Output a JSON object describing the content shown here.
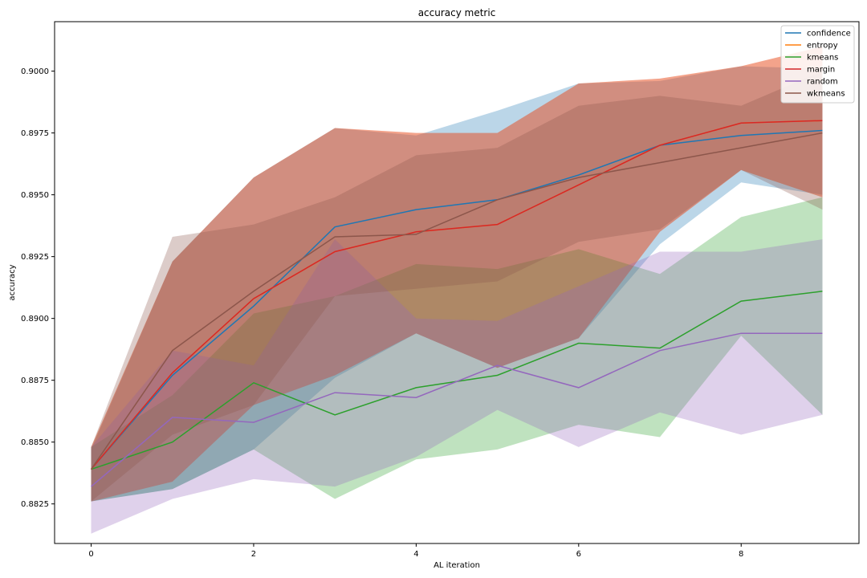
{
  "chart_data": {
    "type": "line",
    "title": "accuracy metric",
    "xlabel": "AL iteration",
    "ylabel": "accuracy",
    "xlim": [
      -0.45,
      9.45
    ],
    "ylim": [
      0.8809,
      0.902
    ],
    "xticks": [
      0,
      2,
      4,
      6,
      8
    ],
    "xtick_labels": [
      "0",
      "2",
      "4",
      "6",
      "8"
    ],
    "yticks": [
      0.8825,
      0.885,
      0.8875,
      0.89,
      0.8925,
      0.895,
      0.8975,
      0.9
    ],
    "ytick_labels": [
      "0.8825",
      "0.8850",
      "0.8875",
      "0.8900",
      "0.8925",
      "0.8950",
      "0.8975",
      "0.9000"
    ],
    "grid": false,
    "legend_position": "top-right",
    "x": [
      0,
      1,
      2,
      3,
      4,
      5,
      6,
      7,
      8,
      9
    ],
    "series": [
      {
        "name": "confidence",
        "color": "#1f77b4",
        "values": [
          0.8839,
          0.8877,
          0.8905,
          0.8937,
          0.8944,
          0.8948,
          0.8958,
          0.897,
          0.8974,
          0.8976
        ],
        "lower": [
          0.8826,
          0.8831,
          0.8847,
          0.8876,
          0.8894,
          0.888,
          0.8892,
          0.893,
          0.8955,
          0.895
        ],
        "upper": [
          0.8847,
          0.8923,
          0.8957,
          0.8977,
          0.8974,
          0.8984,
          0.8995,
          0.8996,
          0.9002,
          0.9001
        ]
      },
      {
        "name": "entropy",
        "color": "#ff7f0e",
        "values": [
          0.8839,
          0.8878,
          0.8908,
          0.8927,
          0.8935,
          0.8938,
          0.8954,
          0.897,
          0.8979,
          0.898
        ],
        "lower": [
          0.8826,
          0.8834,
          0.8865,
          0.8877,
          0.8894,
          0.888,
          0.8892,
          0.8935,
          0.896,
          0.8949
        ],
        "upper": [
          0.8848,
          0.8923,
          0.8957,
          0.8977,
          0.8975,
          0.8975,
          0.8995,
          0.8997,
          0.9002,
          0.901
        ]
      },
      {
        "name": "kmeans",
        "color": "#2ca02c",
        "values": [
          0.8839,
          0.885,
          0.8874,
          0.8861,
          0.8872,
          0.8877,
          0.889,
          0.8888,
          0.8907,
          0.8911
        ],
        "lower": [
          0.8826,
          0.8831,
          0.8847,
          0.8827,
          0.8843,
          0.8847,
          0.8857,
          0.8852,
          0.8893,
          0.8861
        ],
        "upper": [
          0.8848,
          0.8869,
          0.8902,
          0.8909,
          0.8922,
          0.892,
          0.8928,
          0.8918,
          0.8941,
          0.8949
        ]
      },
      {
        "name": "margin",
        "color": "#d62728",
        "values": [
          0.8839,
          0.8878,
          0.8908,
          0.8927,
          0.8935,
          0.8938,
          0.8954,
          0.897,
          0.8979,
          0.898
        ],
        "lower": [
          0.8826,
          0.8834,
          0.8865,
          0.8877,
          0.8894,
          0.888,
          0.8892,
          0.8935,
          0.896,
          0.8949
        ],
        "upper": [
          0.8848,
          0.8923,
          0.8957,
          0.8977,
          0.8975,
          0.8975,
          0.8995,
          0.8997,
          0.9002,
          0.901
        ]
      },
      {
        "name": "random",
        "color": "#9467bd",
        "values": [
          0.8832,
          0.886,
          0.8858,
          0.887,
          0.8868,
          0.8881,
          0.8872,
          0.8887,
          0.8894,
          0.8894
        ],
        "lower": [
          0.8813,
          0.8827,
          0.8835,
          0.8832,
          0.8844,
          0.8863,
          0.8848,
          0.8862,
          0.8853,
          0.8861
        ],
        "upper": [
          0.8848,
          0.8887,
          0.8881,
          0.8932,
          0.89,
          0.8899,
          0.8913,
          0.8927,
          0.8927,
          0.8932
        ]
      },
      {
        "name": "wkmeans",
        "color": "#8c564b",
        "values": [
          0.8839,
          0.8887,
          0.8911,
          0.8933,
          0.8934,
          0.8948,
          0.8957,
          0.8963,
          0.8969,
          0.8975
        ],
        "lower": [
          0.8826,
          0.8853,
          0.8865,
          0.8909,
          0.8912,
          0.8915,
          0.8931,
          0.8936,
          0.896,
          0.8944
        ],
        "upper": [
          0.8848,
          0.8933,
          0.8938,
          0.8949,
          0.8966,
          0.8969,
          0.8986,
          0.899,
          0.8986,
          0.9
        ]
      }
    ]
  }
}
